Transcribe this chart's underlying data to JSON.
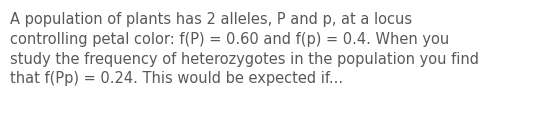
{
  "text": "A population of plants has 2 alleles, P and p, at a locus\ncontrolling petal color: f(P) = 0.60 and f(p) = 0.4. When you\nstudy the frequency of heterozygotes in the population you find\nthat f(Pp) = 0.24. This would be expected if...",
  "text_color": "#58595b",
  "background_color": "#ffffff",
  "font_size": 10.5,
  "figsize": [
    5.58,
    1.26
  ],
  "dpi": 100
}
